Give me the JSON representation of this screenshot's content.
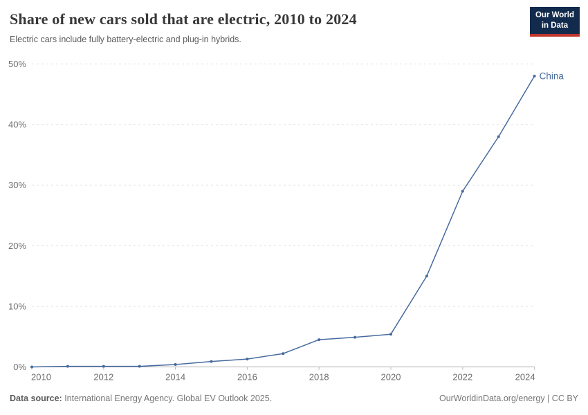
{
  "header": {
    "title": "Share of new cars sold that are electric, 2010 to 2024",
    "subtitle": "Electric cars include fully battery-electric and plug-in hybrids."
  },
  "logo": {
    "line1": "Our World",
    "line2": "in Data",
    "bg_color": "#122b4d",
    "accent_color": "#c0362c"
  },
  "chart_data": {
    "type": "line",
    "title": "Share of new cars sold that are electric, 2010 to 2024",
    "xlabel": "",
    "ylabel": "",
    "x": [
      2010,
      2011,
      2012,
      2013,
      2014,
      2015,
      2016,
      2017,
      2018,
      2019,
      2020,
      2021,
      2022,
      2023,
      2024
    ],
    "series": [
      {
        "name": "China",
        "color": "#466a9f",
        "values": [
          0,
          0.1,
          0.1,
          0.1,
          0.4,
          0.9,
          1.3,
          2.2,
          4.5,
          4.9,
          5.4,
          15,
          29,
          38,
          48
        ]
      }
    ],
    "ylim": [
      0,
      50
    ],
    "xlim": [
      2010,
      2024
    ],
    "yticks": [
      {
        "value": 0,
        "label": "0%"
      },
      {
        "value": 10,
        "label": "10%"
      },
      {
        "value": 20,
        "label": "20%"
      },
      {
        "value": 30,
        "label": "30%"
      },
      {
        "value": 40,
        "label": "40%"
      },
      {
        "value": 50,
        "label": "50%"
      }
    ],
    "xticks": [
      {
        "value": 2010,
        "label": "2010"
      },
      {
        "value": 2012,
        "label": "2012"
      },
      {
        "value": 2014,
        "label": "2014"
      },
      {
        "value": 2016,
        "label": "2016"
      },
      {
        "value": 2018,
        "label": "2018"
      },
      {
        "value": 2020,
        "label": "2020"
      },
      {
        "value": 2022,
        "label": "2022"
      },
      {
        "value": 2024,
        "label": "2024"
      }
    ],
    "grid": "horizontal-dashed",
    "legend": "line-end-label"
  },
  "footer": {
    "source_label": "Data source:",
    "source_text": " International Energy Agency. Global EV Outlook 2025.",
    "link": "OurWorldinData.org/energy",
    "separator": " | ",
    "license": "CC BY"
  }
}
